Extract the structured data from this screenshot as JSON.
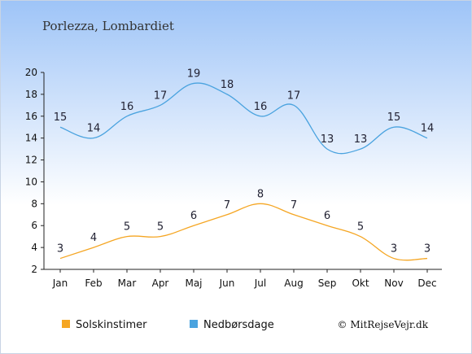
{
  "chart_data": {
    "type": "line",
    "title": "Porlezza, Lombardiet",
    "categories": [
      "Jan",
      "Feb",
      "Mar",
      "Apr",
      "Maj",
      "Jun",
      "Jul",
      "Aug",
      "Sep",
      "Okt",
      "Nov",
      "Dec"
    ],
    "series": [
      {
        "name": "Solskinstimer",
        "color": "#f5a623",
        "values": [
          3,
          4,
          5,
          5,
          6,
          7,
          8,
          7,
          6,
          5,
          3,
          3
        ]
      },
      {
        "name": "Nedbørsdage",
        "color": "#4aa3df",
        "values": [
          15,
          14,
          16,
          17,
          19,
          18,
          16,
          17,
          13,
          13,
          15,
          14
        ]
      }
    ],
    "yticks": [
      2,
      4,
      6,
      8,
      10,
      12,
      14,
      16,
      18,
      20
    ],
    "ylim": [
      2,
      20
    ],
    "xlabel": "",
    "ylabel": "",
    "grid": false,
    "legend_position": "bottom-left",
    "background_gradient": [
      "#9ec4f7",
      "#ffffff"
    ]
  },
  "credit": "© MitRejseVejr.dk"
}
